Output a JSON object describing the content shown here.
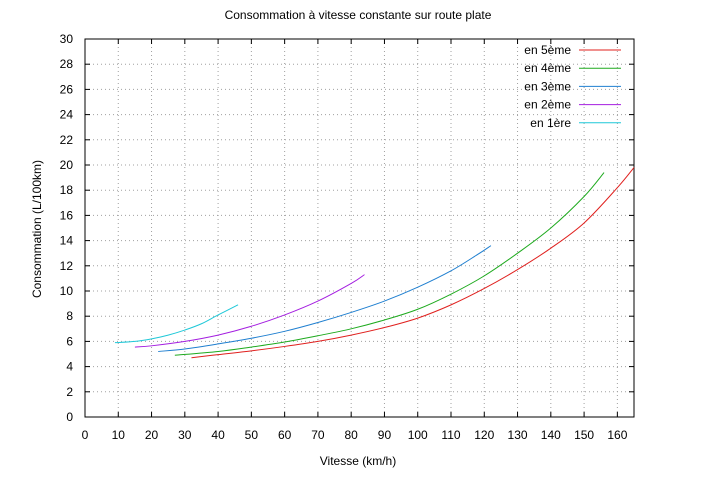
{
  "chart_data": {
    "type": "line",
    "title": "Consommation à vitesse constante sur route plate",
    "xlabel": "Vitesse (km/h)",
    "ylabel": "Consommation (L/100km)",
    "xlim": [
      0,
      165
    ],
    "ylim": [
      0,
      30
    ],
    "xticks": [
      0,
      10,
      20,
      30,
      40,
      50,
      60,
      70,
      80,
      90,
      100,
      110,
      120,
      130,
      140,
      150,
      160
    ],
    "yticks": [
      0,
      2,
      4,
      6,
      8,
      10,
      12,
      14,
      16,
      18,
      20,
      22,
      24,
      26,
      28,
      30
    ],
    "grid": true,
    "legend_position": "top-right",
    "series": [
      {
        "name": "en 5ème",
        "color": "#e0201e",
        "points": [
          [
            32,
            4.7
          ],
          [
            40,
            4.95
          ],
          [
            50,
            5.25
          ],
          [
            60,
            5.6
          ],
          [
            70,
            6.0
          ],
          [
            80,
            6.5
          ],
          [
            90,
            7.1
          ],
          [
            100,
            7.85
          ],
          [
            110,
            8.9
          ],
          [
            120,
            10.2
          ],
          [
            130,
            11.7
          ],
          [
            140,
            13.4
          ],
          [
            150,
            15.4
          ],
          [
            160,
            18.2
          ],
          [
            165,
            19.8
          ]
        ]
      },
      {
        "name": "en 4ème",
        "color": "#1eaa1e",
        "points": [
          [
            27,
            4.9
          ],
          [
            40,
            5.2
          ],
          [
            50,
            5.55
          ],
          [
            60,
            5.95
          ],
          [
            70,
            6.45
          ],
          [
            80,
            7.0
          ],
          [
            90,
            7.7
          ],
          [
            100,
            8.55
          ],
          [
            110,
            9.75
          ],
          [
            120,
            11.2
          ],
          [
            130,
            13.0
          ],
          [
            140,
            15.0
          ],
          [
            150,
            17.5
          ],
          [
            156,
            19.4
          ]
        ]
      },
      {
        "name": "en 3ème",
        "color": "#1f7fd0",
        "points": [
          [
            22,
            5.2
          ],
          [
            30,
            5.4
          ],
          [
            40,
            5.8
          ],
          [
            50,
            6.25
          ],
          [
            60,
            6.8
          ],
          [
            70,
            7.5
          ],
          [
            80,
            8.3
          ],
          [
            90,
            9.2
          ],
          [
            100,
            10.3
          ],
          [
            110,
            11.6
          ],
          [
            118,
            12.9
          ],
          [
            122,
            13.6
          ]
        ]
      },
      {
        "name": "en 2ème",
        "color": "#a41ee0",
        "points": [
          [
            15,
            5.55
          ],
          [
            20,
            5.65
          ],
          [
            30,
            6.0
          ],
          [
            40,
            6.5
          ],
          [
            50,
            7.2
          ],
          [
            60,
            8.1
          ],
          [
            70,
            9.2
          ],
          [
            80,
            10.6
          ],
          [
            84,
            11.3
          ]
        ]
      },
      {
        "name": "en 1ère",
        "color": "#1ec8d8",
        "points": [
          [
            9,
            5.9
          ],
          [
            15,
            6.0
          ],
          [
            20,
            6.2
          ],
          [
            25,
            6.5
          ],
          [
            30,
            6.9
          ],
          [
            35,
            7.4
          ],
          [
            40,
            8.1
          ],
          [
            46,
            8.9
          ]
        ]
      }
    ]
  }
}
